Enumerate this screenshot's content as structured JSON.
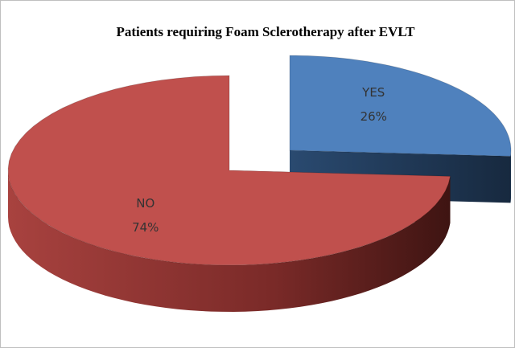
{
  "chart_data": {
    "type": "pie",
    "title": "Patients requiring Foam Sclerotherapy after EVLT",
    "categories": [
      "YES",
      "NO"
    ],
    "values": [
      26,
      74
    ],
    "value_labels": [
      "26%",
      "74%"
    ],
    "colors": [
      "#4f81bd",
      "#c0504d"
    ],
    "exploded": [
      "YES"
    ]
  }
}
